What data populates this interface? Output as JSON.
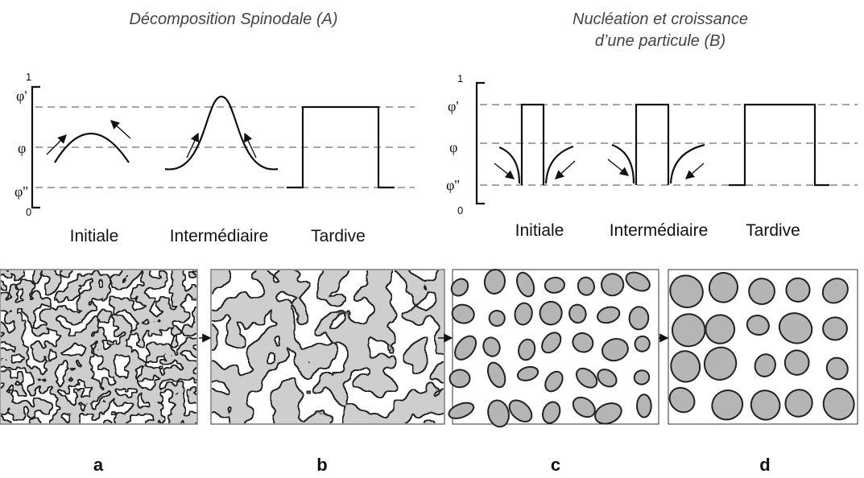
{
  "panels": [
    {
      "title_lines": [
        "Décomposition Spinodale (A)"
      ],
      "axis_labels": [
        "1",
        "φ'",
        "φ",
        "φ''",
        "0"
      ],
      "stages": [
        "Initiale",
        "Intermédiaire",
        "Tardive"
      ]
    },
    {
      "title_lines": [
        "Nucléation et croissance",
        "d’une particule (B)"
      ],
      "axis_labels": [
        "1",
        "φ'",
        "φ",
        "φ''",
        "0"
      ],
      "stages": [
        "Initiale",
        "Intermédiaire",
        "Tardive"
      ]
    }
  ],
  "images": {
    "labels": [
      "a",
      "b",
      "c",
      "d"
    ]
  }
}
